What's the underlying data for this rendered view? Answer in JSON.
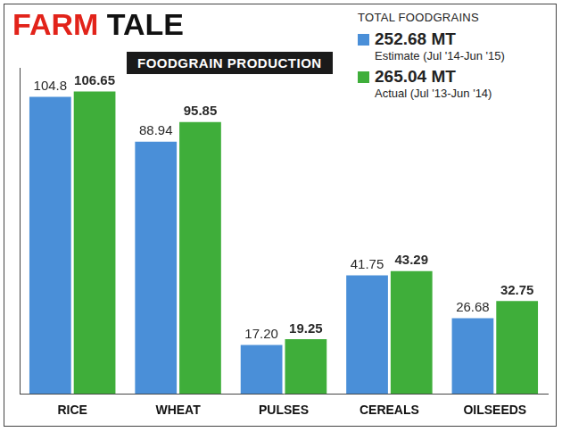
{
  "chart_data": {
    "type": "bar",
    "title": "FARM TALE",
    "subtitle": "FOODGRAIN PRODUCTION",
    "legend_title": "TOTAL FOODGRAINS",
    "categories": [
      "RICE",
      "WHEAT",
      "PULSES",
      "CEREALS",
      "OILSEEDS"
    ],
    "series": [
      {
        "name": "Estimate (Jul '14-Jun '15)",
        "total": {
          "value": 252.68,
          "label": "252.68 MT"
        },
        "color": "#4a8fd8",
        "values": [
          104.8,
          88.94,
          17.2,
          41.75,
          26.68
        ],
        "value_labels": [
          "104.8",
          "88.94",
          "17.20",
          "41.75",
          "26.68"
        ]
      },
      {
        "name": "Actual (Jul '13-Jun '14)",
        "total": {
          "value": 265.04,
          "label": "265.04 MT"
        },
        "color": "#3fae3a",
        "values": [
          106.65,
          95.85,
          19.25,
          43.29,
          32.75
        ],
        "value_labels": [
          "106.65",
          "95.85",
          "19.25",
          "43.29",
          "32.75"
        ]
      }
    ],
    "ylim": [
      0,
      115
    ],
    "grid": false,
    "data_labels": true,
    "tick_labels": "x",
    "legend": "top right"
  }
}
